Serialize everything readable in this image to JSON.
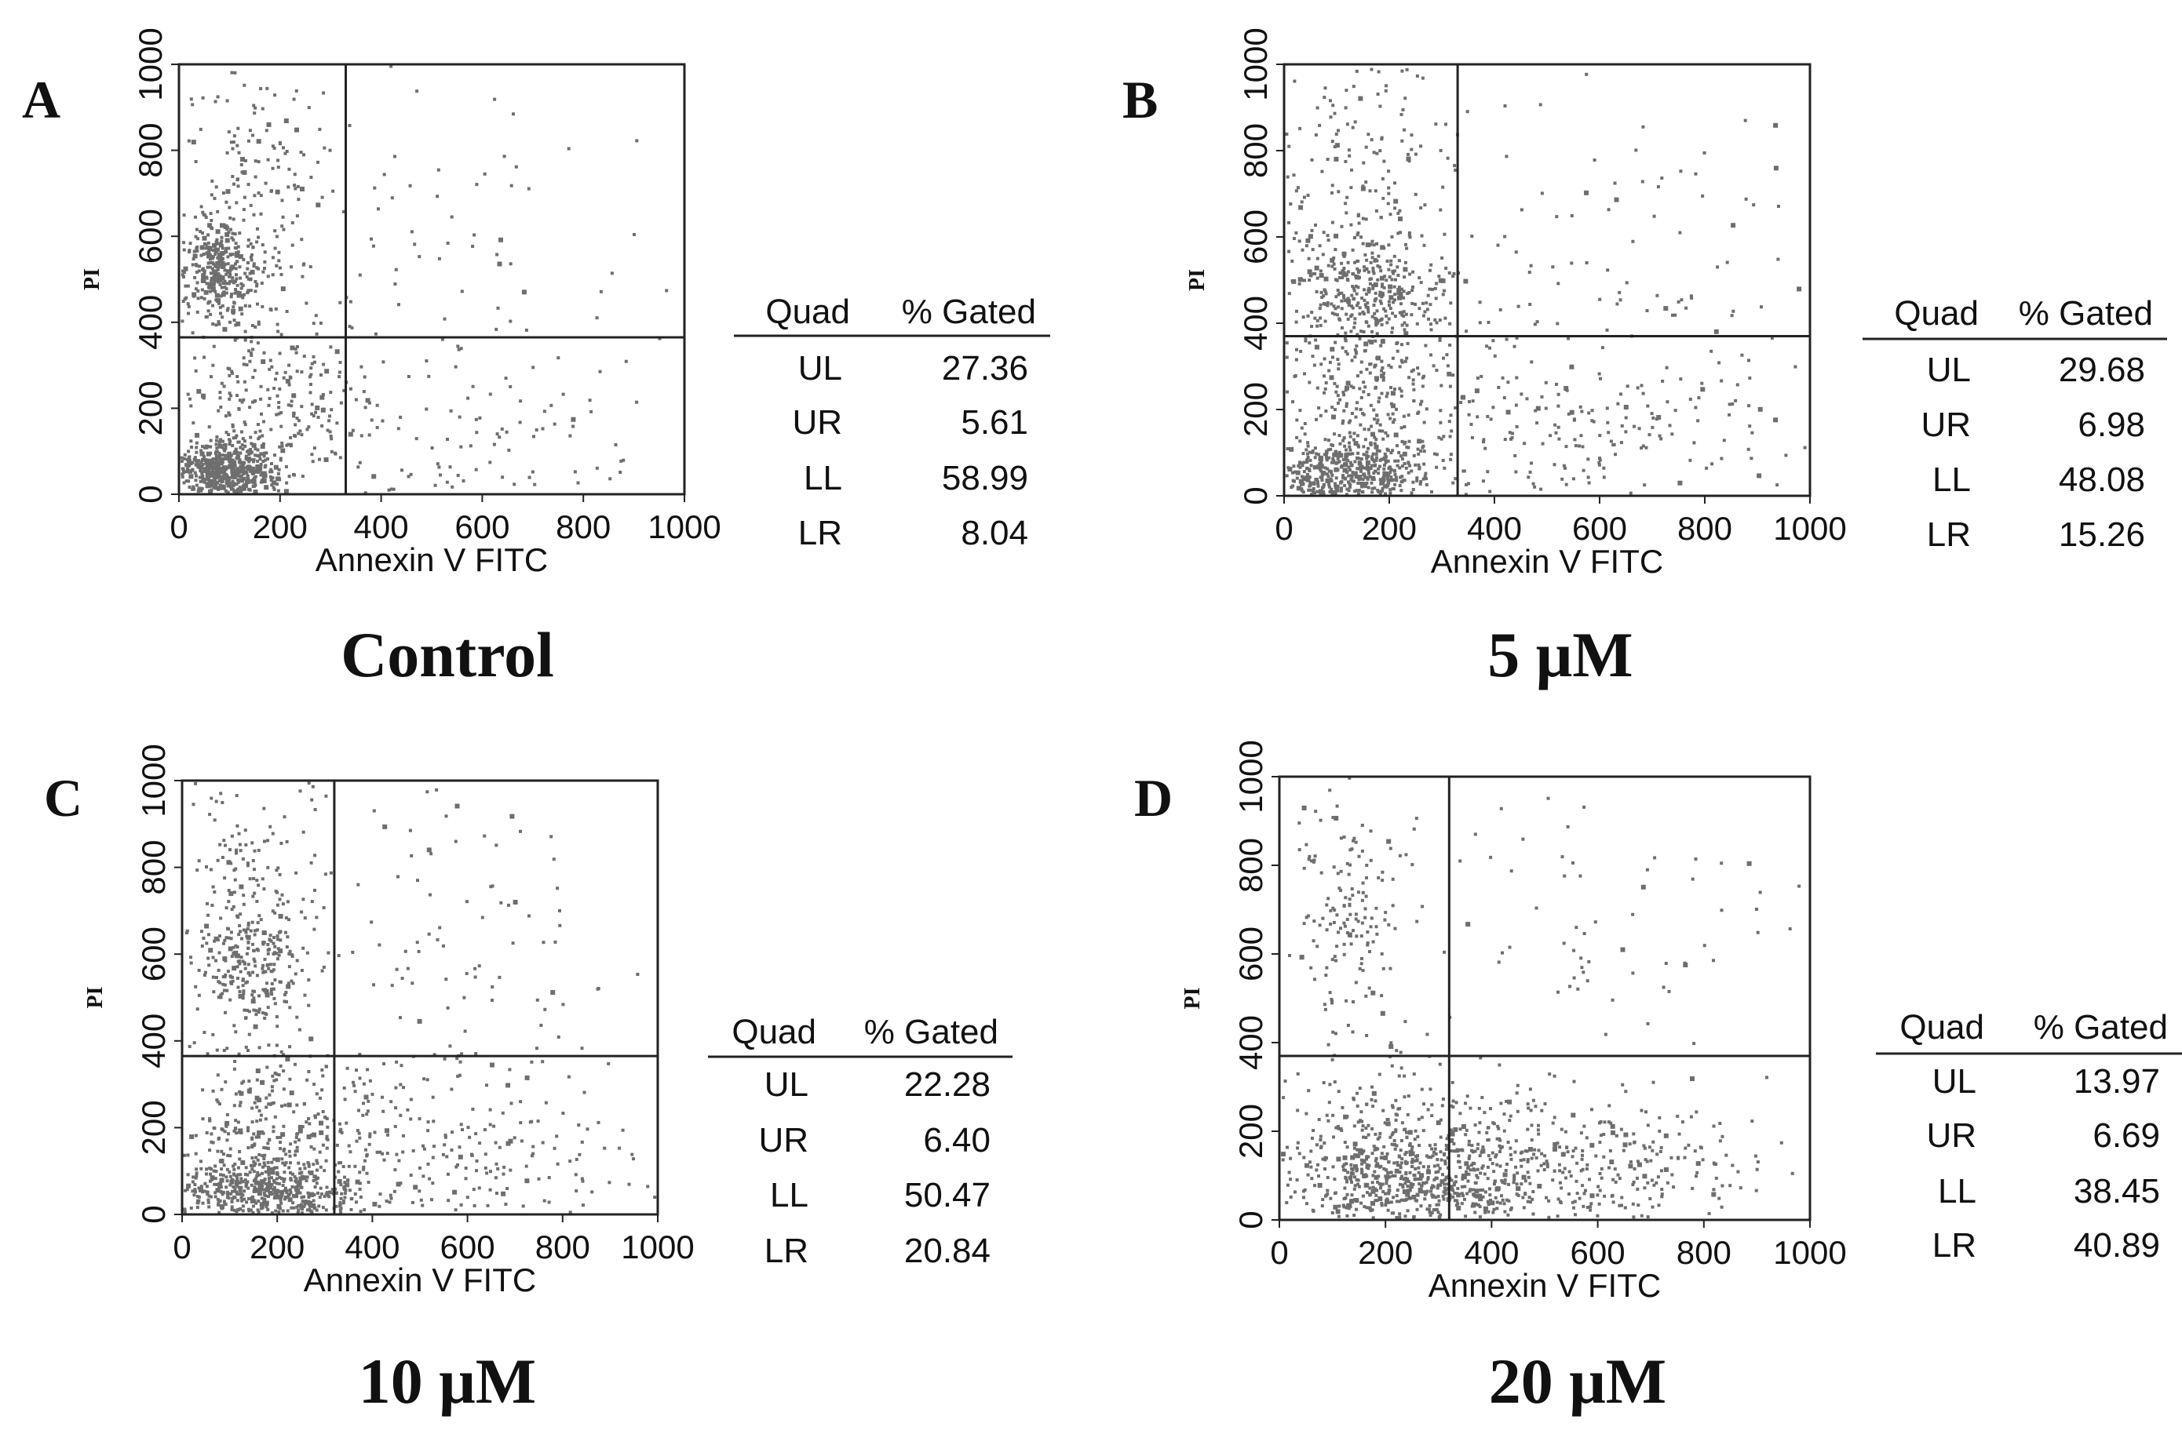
{
  "figure": {
    "style": {
      "point_color": "#6e6e6e",
      "axis_color": "#222222",
      "background": "#ffffff"
    },
    "table_header": {
      "quad": "Quad",
      "gated": "% Gated"
    }
  },
  "chart_data": [
    {
      "type": "scatter",
      "panel": "A",
      "title": "Control",
      "xlabel": "Annexin V  FITC",
      "ylabel": "PI",
      "xlim": [
        0,
        1000
      ],
      "ylim": [
        0,
        1000
      ],
      "xticks": [
        0,
        200,
        400,
        600,
        800,
        1000
      ],
      "yticks": [
        0,
        200,
        400,
        600,
        800,
        1000
      ],
      "quadrant_x": 330,
      "quadrant_y": 365,
      "quadrants": [
        {
          "quad": "UL",
          "gated": "27.36"
        },
        {
          "quad": "UR",
          "gated": "5.61"
        },
        {
          "quad": "LL",
          "gated": "58.99"
        },
        {
          "quad": "LR",
          "gated": "8.04"
        }
      ],
      "clusters": [
        {
          "cx": 90,
          "cy": 50,
          "sx": 50,
          "sy": 35,
          "n": 620
        },
        {
          "cx": 80,
          "cy": 520,
          "sx": 35,
          "sy": 55,
          "n": 320
        },
        {
          "cx": 150,
          "cy": 700,
          "sx": 80,
          "sy": 200,
          "n": 220
        },
        {
          "cx": 180,
          "cy": 200,
          "sx": 90,
          "sy": 100,
          "n": 220
        },
        {
          "cx": 500,
          "cy": 450,
          "sx": 260,
          "sy": 290,
          "n": 120
        },
        {
          "cx": 500,
          "cy": 130,
          "sx": 240,
          "sy": 110,
          "n": 110
        }
      ]
    },
    {
      "type": "scatter",
      "panel": "B",
      "title": "5 μM",
      "xlabel": "Annexin V  FITC",
      "ylabel": "PI",
      "xlim": [
        0,
        1000
      ],
      "ylim": [
        0,
        1000
      ],
      "xticks": [
        0,
        200,
        400,
        600,
        800,
        1000
      ],
      "yticks": [
        0,
        200,
        400,
        600,
        800,
        1000
      ],
      "quadrant_x": 330,
      "quadrant_y": 370,
      "quadrants": [
        {
          "quad": "UL",
          "gated": "29.68"
        },
        {
          "quad": "UR",
          "gated": "6.98"
        },
        {
          "quad": "LL",
          "gated": "48.08"
        },
        {
          "quad": "LR",
          "gated": "15.26"
        }
      ],
      "clusters": [
        {
          "cx": 120,
          "cy": 50,
          "sx": 80,
          "sy": 40,
          "n": 520
        },
        {
          "cx": 160,
          "cy": 470,
          "sx": 70,
          "sy": 70,
          "n": 320
        },
        {
          "cx": 150,
          "cy": 720,
          "sx": 90,
          "sy": 180,
          "n": 200
        },
        {
          "cx": 160,
          "cy": 200,
          "sx": 100,
          "sy": 110,
          "n": 260
        },
        {
          "cx": 560,
          "cy": 450,
          "sx": 260,
          "sy": 280,
          "n": 150
        },
        {
          "cx": 560,
          "cy": 130,
          "sx": 240,
          "sy": 110,
          "n": 220
        }
      ]
    },
    {
      "type": "scatter",
      "panel": "C",
      "title": "10 μM",
      "xlabel": "Annexin V  FITC",
      "ylabel": "PI",
      "xlim": [
        0,
        1000
      ],
      "ylim": [
        0,
        1000
      ],
      "xticks": [
        0,
        200,
        400,
        600,
        800,
        1000
      ],
      "yticks": [
        0,
        200,
        400,
        600,
        800,
        1000
      ],
      "quadrant_x": 320,
      "quadrant_y": 365,
      "quadrants": [
        {
          "quad": "UL",
          "gated": "22.28"
        },
        {
          "quad": "UR",
          "gated": "6.40"
        },
        {
          "quad": "LL",
          "gated": "50.47"
        },
        {
          "quad": "LR",
          "gated": "20.84"
        }
      ],
      "clusters": [
        {
          "cx": 170,
          "cy": 50,
          "sx": 100,
          "sy": 40,
          "n": 560
        },
        {
          "cx": 140,
          "cy": 560,
          "sx": 60,
          "sy": 80,
          "n": 230
        },
        {
          "cx": 150,
          "cy": 780,
          "sx": 80,
          "sy": 150,
          "n": 150
        },
        {
          "cx": 170,
          "cy": 200,
          "sx": 100,
          "sy": 100,
          "n": 230
        },
        {
          "cx": 550,
          "cy": 600,
          "sx": 240,
          "sy": 220,
          "n": 120
        },
        {
          "cx": 500,
          "cy": 130,
          "sx": 200,
          "sy": 110,
          "n": 300
        }
      ]
    },
    {
      "type": "scatter",
      "panel": "D",
      "title": "20 μM",
      "xlabel": "Annexin V  FITC",
      "ylabel": "PI",
      "xlim": [
        0,
        1000
      ],
      "ylim": [
        0,
        1000
      ],
      "xticks": [
        0,
        200,
        400,
        600,
        800,
        1000
      ],
      "yticks": [
        0,
        200,
        400,
        600,
        800,
        1000
      ],
      "quadrant_x": 320,
      "quadrant_y": 370,
      "quadrants": [
        {
          "quad": "UL",
          "gated": "13.97"
        },
        {
          "quad": "UR",
          "gated": "6.69"
        },
        {
          "quad": "LL",
          "gated": "38.45"
        },
        {
          "quad": "LR",
          "gated": "40.89"
        }
      ],
      "clusters": [
        {
          "cx": 250,
          "cy": 90,
          "sx": 110,
          "sy": 60,
          "n": 520
        },
        {
          "cx": 130,
          "cy": 700,
          "sx": 60,
          "sy": 140,
          "n": 160
        },
        {
          "cx": 200,
          "cy": 230,
          "sx": 90,
          "sy": 90,
          "n": 120
        },
        {
          "cx": 500,
          "cy": 110,
          "sx": 220,
          "sy": 85,
          "n": 520
        },
        {
          "cx": 600,
          "cy": 650,
          "sx": 260,
          "sy": 230,
          "n": 90
        }
      ]
    }
  ]
}
